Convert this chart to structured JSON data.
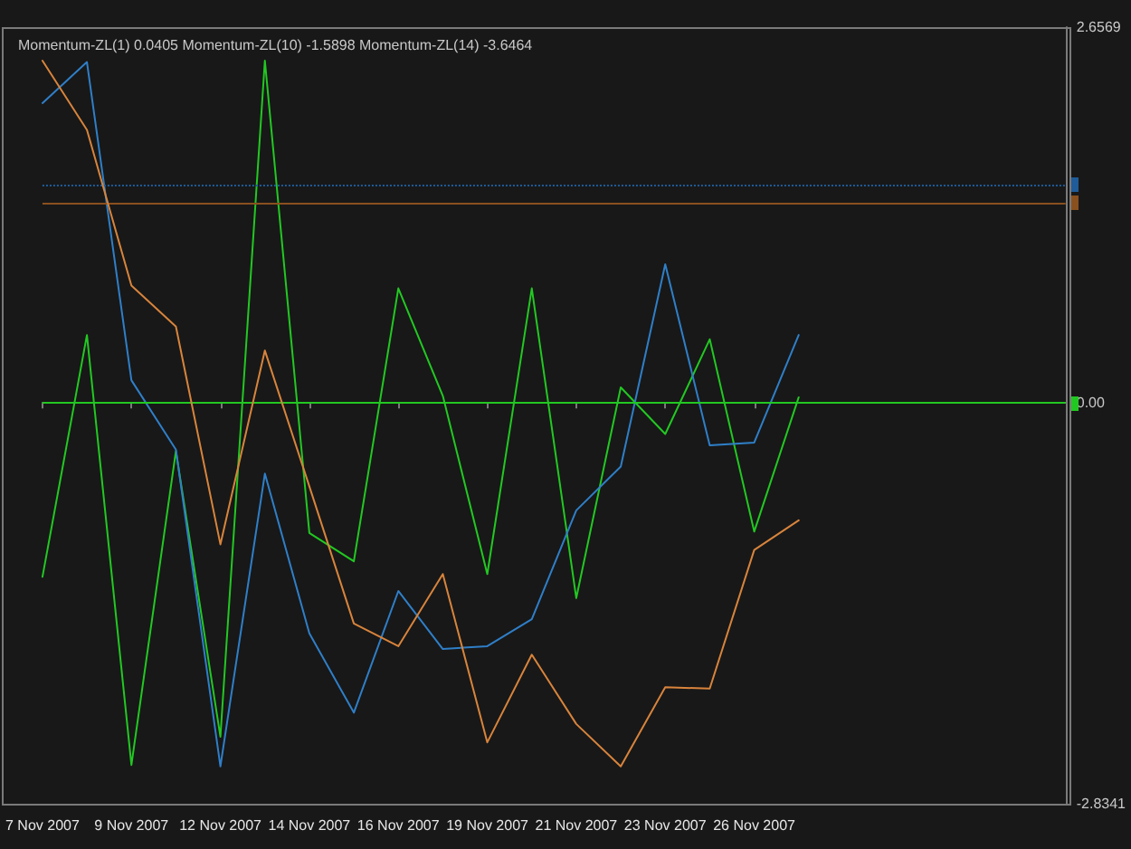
{
  "chart_data": {
    "type": "line",
    "title": "Momentum-ZL(1) 0.0405 Momentum-ZL(10) -1.5898 Momentum-ZL(14) -3.6464",
    "categories": [
      "7 Nov 2007",
      null,
      "9 Nov 2007",
      null,
      "12 Nov 2007",
      null,
      "14 Nov 2007",
      null,
      "16 Nov 2007",
      null,
      "19 Nov 2007",
      null,
      "21 Nov 2007",
      null,
      "23 Nov 2007",
      null,
      "26 Nov 2007",
      null
    ],
    "series": [
      {
        "color": "#22c822",
        "values": [
          -1.23,
          0.48,
          -2.56,
          -0.34,
          -2.36,
          2.42,
          -0.92,
          -1.12,
          0.81,
          0.05,
          -1.21,
          0.81,
          -1.38,
          0.11,
          -0.22,
          0.45,
          -0.91,
          0.04
        ]
      },
      {
        "color": "#2f7fc8",
        "values": [
          2.12,
          2.41,
          0.16,
          -0.33,
          -2.57,
          -0.5,
          -1.63,
          -2.19,
          -1.33,
          -1.74,
          -1.72,
          -1.53,
          -0.76,
          -0.45,
          0.98,
          -0.3,
          -0.28,
          0.48
        ]
      },
      {
        "color": "#d8843c",
        "values": [
          2.42,
          1.93,
          0.83,
          0.54,
          -1.0,
          0.37,
          -0.59,
          -1.56,
          -1.72,
          -1.21,
          -2.4,
          -1.78,
          -2.27,
          -2.57,
          -2.01,
          -2.02,
          -1.04,
          -0.83
        ]
      }
    ],
    "ylim": [
      -2.8341,
      2.6569
    ],
    "yticks": [
      -2.8341,
      {
        "value": 0,
        "label": "0.00"
      },
      2.6569
    ],
    "ref_lines": [
      {
        "axis": "y",
        "value": 1.54,
        "color": "#1f5c99",
        "line_style": "dotted"
      },
      {
        "axis": "y",
        "value": 1.41,
        "color": "#8a501e"
      },
      {
        "axis": "y",
        "value": 0,
        "color": "#22c822"
      }
    ],
    "marker": "none"
  }
}
